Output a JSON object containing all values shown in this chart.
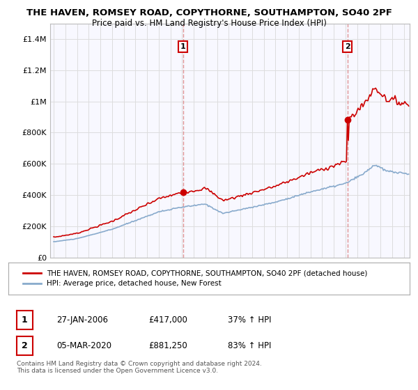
{
  "title": "THE HAVEN, ROMSEY ROAD, COPYTHORNE, SOUTHAMPTON, SO40 2PF",
  "subtitle": "Price paid vs. HM Land Registry's House Price Index (HPI)",
  "ylim": [
    0,
    1500000
  ],
  "yticks": [
    0,
    200000,
    400000,
    600000,
    800000,
    1000000,
    1200000,
    1400000
  ],
  "ytick_labels": [
    "£0",
    "£200K",
    "£400K",
    "£600K",
    "£800K",
    "£1M",
    "£1.2M",
    "£1.4M"
  ],
  "xlim_start": 1994.7,
  "xlim_end": 2025.5,
  "transaction1_x": 2006.08,
  "transaction1_y": 417000,
  "transaction1_label": "1",
  "transaction1_date": "27-JAN-2006",
  "transaction1_price": "£417,000",
  "transaction1_hpi": "37% ↑ HPI",
  "transaction2_x": 2020.17,
  "transaction2_y": 881250,
  "transaction2_label": "2",
  "transaction2_date": "05-MAR-2020",
  "transaction2_price": "£881,250",
  "transaction2_hpi": "83% ↑ HPI",
  "line_color_property": "#cc0000",
  "line_color_hpi": "#88aacc",
  "vline_color": "#dd8888",
  "background_color": "#ffffff",
  "plot_bg_color": "#f8f8ff",
  "grid_color": "#dddddd",
  "legend_line1": "THE HAVEN, ROMSEY ROAD, COPYTHORNE, SOUTHAMPTON, SO40 2PF (detached house)",
  "legend_line2": "HPI: Average price, detached house, New Forest",
  "footer": "Contains HM Land Registry data © Crown copyright and database right 2024.\nThis data is licensed under the Open Government Licence v3.0."
}
